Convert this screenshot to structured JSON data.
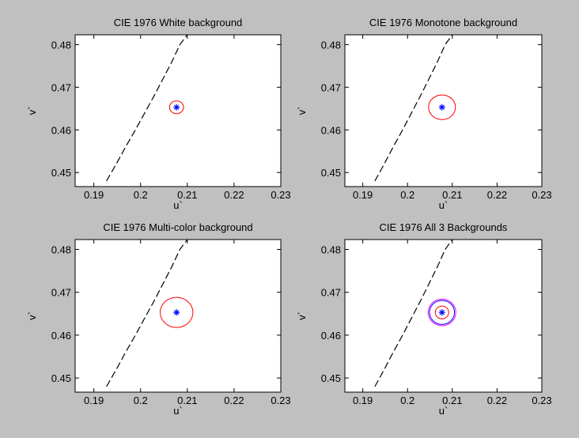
{
  "figure": {
    "background": "#c0c0c0",
    "axes_background": "#ffffff"
  },
  "chart_data": [
    {
      "type": "line",
      "title": "CIE 1976 White background",
      "xlabel": "u`",
      "ylabel": "v`",
      "xlim": [
        0.186,
        0.23
      ],
      "ylim": [
        0.4467,
        0.4823
      ],
      "xticks": [
        0.19,
        0.2,
        0.21,
        0.22,
        0.23
      ],
      "xtick_labels": [
        "0.19",
        "0.2",
        "0.21",
        "0.22",
        "0.23"
      ],
      "yticks": [
        0.45,
        0.46,
        0.47,
        0.48
      ],
      "ytick_labels": [
        "0.45",
        "0.46",
        "0.47",
        "0.48"
      ],
      "locus": {
        "color": "#000000",
        "style": "dashed",
        "x": [
          0.1927,
          0.1948,
          0.1968,
          0.1989,
          0.2009,
          0.2029,
          0.2048,
          0.2067,
          0.2084,
          0.21
        ],
        "y": [
          0.448,
          0.452,
          0.456,
          0.46,
          0.464,
          0.468,
          0.472,
          0.476,
          0.48,
          0.4823
        ]
      },
      "center": {
        "x": 0.2077,
        "y": 0.4653,
        "color": "#0000ff",
        "marker": "*"
      },
      "ellipses": [
        {
          "color": "#ff0000",
          "rx": 0.0015,
          "ry": 0.0015
        }
      ]
    },
    {
      "type": "line",
      "title": "CIE 1976 Monotone background",
      "xlabel": "u`",
      "ylabel": "v`",
      "xlim": [
        0.186,
        0.23
      ],
      "ylim": [
        0.4467,
        0.4823
      ],
      "xticks": [
        0.19,
        0.2,
        0.21,
        0.22,
        0.23
      ],
      "xtick_labels": [
        "0.19",
        "0.2",
        "0.21",
        "0.22",
        "0.23"
      ],
      "yticks": [
        0.45,
        0.46,
        0.47,
        0.48
      ],
      "ytick_labels": [
        "0.45",
        "0.46",
        "0.47",
        "0.48"
      ],
      "locus": {
        "color": "#000000",
        "style": "dashed",
        "x": [
          0.1927,
          0.1948,
          0.1968,
          0.1989,
          0.2009,
          0.2029,
          0.2048,
          0.2067,
          0.2084,
          0.21
        ],
        "y": [
          0.448,
          0.452,
          0.456,
          0.46,
          0.464,
          0.468,
          0.472,
          0.476,
          0.48,
          0.4823
        ]
      },
      "center": {
        "x": 0.2077,
        "y": 0.4653,
        "color": "#0000ff",
        "marker": "*"
      },
      "ellipses": [
        {
          "color": "#ff0000",
          "rx": 0.003,
          "ry": 0.0029
        }
      ]
    },
    {
      "type": "line",
      "title": "CIE 1976 Multi-color background",
      "xlabel": "u`",
      "ylabel": "v`",
      "xlim": [
        0.186,
        0.23
      ],
      "ylim": [
        0.4467,
        0.4823
      ],
      "xticks": [
        0.19,
        0.2,
        0.21,
        0.22,
        0.23
      ],
      "xtick_labels": [
        "0.19",
        "0.2",
        "0.21",
        "0.22",
        "0.23"
      ],
      "yticks": [
        0.45,
        0.46,
        0.47,
        0.48
      ],
      "ytick_labels": [
        "0.45",
        "0.46",
        "0.47",
        "0.48"
      ],
      "locus": {
        "color": "#000000",
        "style": "dashed",
        "x": [
          0.1927,
          0.1948,
          0.1968,
          0.1989,
          0.2009,
          0.2029,
          0.2048,
          0.2067,
          0.2084,
          0.21
        ],
        "y": [
          0.448,
          0.452,
          0.456,
          0.46,
          0.464,
          0.468,
          0.472,
          0.476,
          0.48,
          0.4823
        ]
      },
      "center": {
        "x": 0.2077,
        "y": 0.4653,
        "color": "#0000ff",
        "marker": "*"
      },
      "ellipses": [
        {
          "color": "#ff0000",
          "rx": 0.0035,
          "ry": 0.0035
        }
      ]
    },
    {
      "type": "line",
      "title": "CIE 1976 All 3 Backgrounds",
      "xlabel": "u`",
      "ylabel": "v`",
      "xlim": [
        0.186,
        0.23
      ],
      "ylim": [
        0.4467,
        0.4823
      ],
      "xticks": [
        0.19,
        0.2,
        0.21,
        0.22,
        0.23
      ],
      "xtick_labels": [
        "0.19",
        "0.2",
        "0.21",
        "0.22",
        "0.23"
      ],
      "yticks": [
        0.45,
        0.46,
        0.47,
        0.48
      ],
      "ytick_labels": [
        "0.45",
        "0.46",
        "0.47",
        "0.48"
      ],
      "locus": {
        "color": "#000000",
        "style": "dashed",
        "x": [
          0.1927,
          0.1948,
          0.1968,
          0.1989,
          0.2009,
          0.2029,
          0.2048,
          0.2067,
          0.2084,
          0.21
        ],
        "y": [
          0.448,
          0.452,
          0.456,
          0.46,
          0.464,
          0.468,
          0.472,
          0.476,
          0.48,
          0.4823
        ]
      },
      "center": {
        "x": 0.2077,
        "y": 0.4653,
        "color": "#0000ff",
        "marker": "*"
      },
      "ellipses": [
        {
          "color": "#ff00ff",
          "rx": 0.0031,
          "ry": 0.0031
        },
        {
          "color": "#0000ff",
          "rx": 0.0028,
          "ry": 0.0028
        },
        {
          "color": "#ff0000",
          "rx": 0.0015,
          "ry": 0.0015
        }
      ]
    }
  ]
}
